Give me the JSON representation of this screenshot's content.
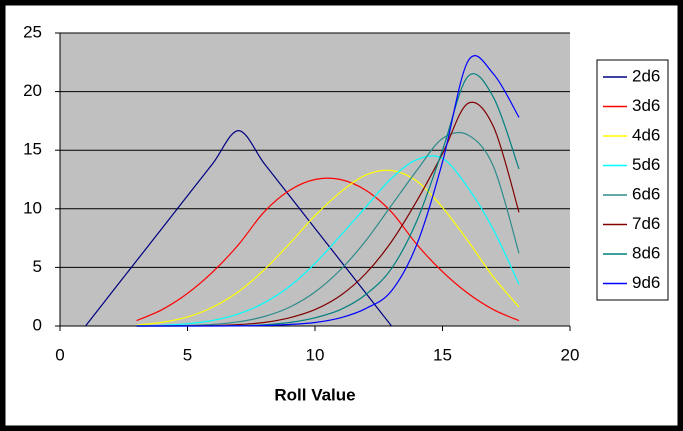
{
  "chart_data": {
    "type": "line",
    "x_label": "Roll Value",
    "xlim": [
      0,
      20
    ],
    "xticks": [
      0,
      5,
      10,
      15,
      20
    ],
    "ylim": [
      0,
      25
    ],
    "yticks": [
      0,
      5,
      10,
      15,
      20,
      25
    ],
    "grid": true,
    "legend": "right",
    "smooth": true,
    "series": [
      {
        "name": "2d6",
        "color": "#000080",
        "x": [
          1,
          2,
          3,
          4,
          5,
          6,
          7,
          8,
          9,
          10,
          11,
          12,
          13
        ],
        "values": [
          0,
          2.78,
          5.56,
          8.33,
          11.11,
          13.89,
          16.67,
          13.89,
          11.11,
          8.33,
          5.56,
          2.78,
          0
        ]
      },
      {
        "name": "3d6",
        "color": "#ff0000",
        "x": [
          3,
          4,
          5,
          6,
          7,
          8,
          9,
          10,
          11,
          12,
          13,
          14,
          15,
          16,
          17,
          18
        ],
        "values": [
          0.46,
          1.39,
          2.78,
          4.63,
          6.94,
          9.72,
          11.57,
          12.5,
          12.5,
          11.57,
          9.72,
          6.94,
          4.63,
          2.78,
          1.39,
          0.46
        ]
      },
      {
        "name": "4d6",
        "color": "#ffff00",
        "x": [
          3,
          4,
          5,
          6,
          7,
          8,
          9,
          10,
          11,
          12,
          13,
          14,
          15,
          16,
          17,
          18
        ],
        "values": [
          0.08,
          0.31,
          0.77,
          1.62,
          2.93,
          4.78,
          7.02,
          9.41,
          11.42,
          12.89,
          13.27,
          12.35,
          10.11,
          7.25,
          4.17,
          1.62
        ]
      },
      {
        "name": "5d6",
        "color": "#00ffff",
        "x": [
          3,
          4,
          5,
          6,
          7,
          8,
          9,
          10,
          11,
          12,
          13,
          14,
          15,
          16,
          17,
          18
        ],
        "values": [
          0.01,
          0.06,
          0.19,
          0.48,
          1.03,
          1.97,
          3.38,
          5.34,
          7.71,
          10.17,
          12.6,
          14.2,
          14.3,
          11.8,
          8.2,
          3.55
        ]
      },
      {
        "name": "6d6",
        "color": "#2e8b8b",
        "x": [
          3,
          4,
          5,
          6,
          7,
          8,
          9,
          10,
          11,
          12,
          13,
          14,
          15,
          16,
          17,
          18
        ],
        "values": [
          0,
          0.01,
          0.04,
          0.14,
          0.36,
          0.8,
          1.6,
          2.9,
          4.8,
          7.3,
          10.3,
          13.3,
          16.0,
          16.3,
          13.6,
          6.2
        ]
      },
      {
        "name": "7d6",
        "color": "#800000",
        "x": [
          3,
          4,
          5,
          6,
          7,
          8,
          9,
          10,
          11,
          12,
          13,
          14,
          15,
          16,
          17,
          18
        ],
        "values": [
          0,
          0,
          0.01,
          0.04,
          0.12,
          0.3,
          0.7,
          1.4,
          2.6,
          4.5,
          7.2,
          10.7,
          14.7,
          19.0,
          17.0,
          9.7
        ]
      },
      {
        "name": "8d6",
        "color": "#008080",
        "x": [
          3,
          4,
          5,
          6,
          7,
          8,
          9,
          10,
          11,
          12,
          13,
          14,
          15,
          16,
          17,
          18
        ],
        "values": [
          0,
          0,
          0,
          0.01,
          0.03,
          0.1,
          0.3,
          0.7,
          1.4,
          2.7,
          4.9,
          9.0,
          15.0,
          21.3,
          19.5,
          13.4
        ]
      },
      {
        "name": "9d6",
        "color": "#0000ff",
        "x": [
          3,
          4,
          5,
          6,
          7,
          8,
          9,
          10,
          11,
          12,
          13,
          14,
          15,
          16,
          17,
          18
        ],
        "values": [
          0,
          0,
          0,
          0,
          0.01,
          0.04,
          0.13,
          0.3,
          0.7,
          1.5,
          3.0,
          7.0,
          14.0,
          22.6,
          21.5,
          17.8
        ]
      }
    ]
  }
}
